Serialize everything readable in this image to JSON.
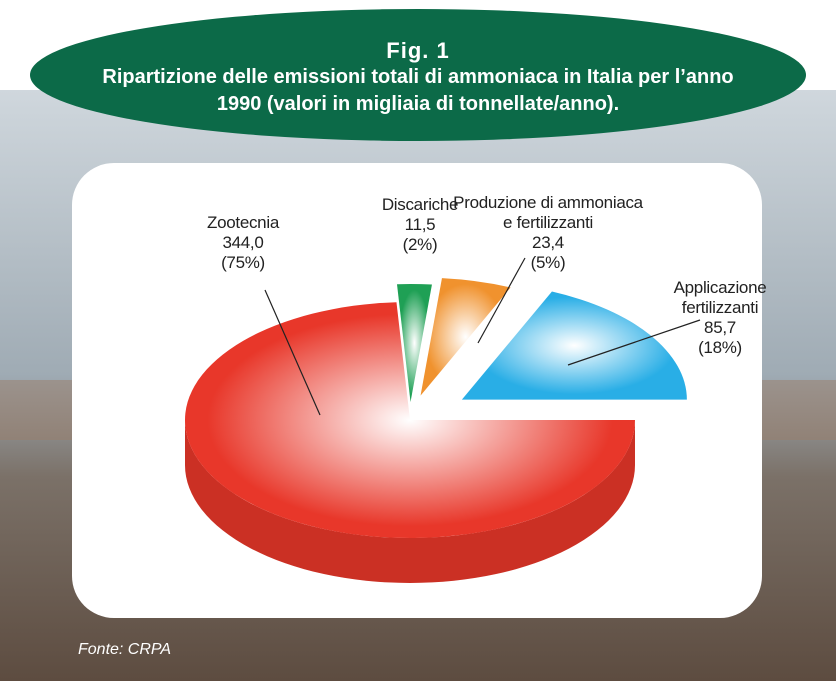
{
  "chart_data": {
    "type": "pie",
    "figure_label": "Fig. 1",
    "title": "Ripartizione delle emissioni totali di ammoniaca in Italia per l’anno 1990 (valori in migliaia di tonnellate/anno).",
    "categories": [
      "Zootecnia",
      "Discariche",
      "Produzione di ammoniaca\ne fertilizzanti",
      "Applicazione\nfertilizzanti"
    ],
    "values": [
      344.0,
      11.5,
      23.4,
      85.7
    ],
    "value_labels": [
      "344,0",
      "11,5",
      "23,4",
      "85,7"
    ],
    "percentages": [
      75,
      2,
      5,
      18
    ],
    "percentage_labels": [
      "(75%)",
      "(2%)",
      "(5%)",
      "(18%)"
    ],
    "colors": [
      "#e8372a",
      "#1fa055",
      "#f0922e",
      "#29aee6"
    ],
    "source": "Fonte: CRPA"
  }
}
